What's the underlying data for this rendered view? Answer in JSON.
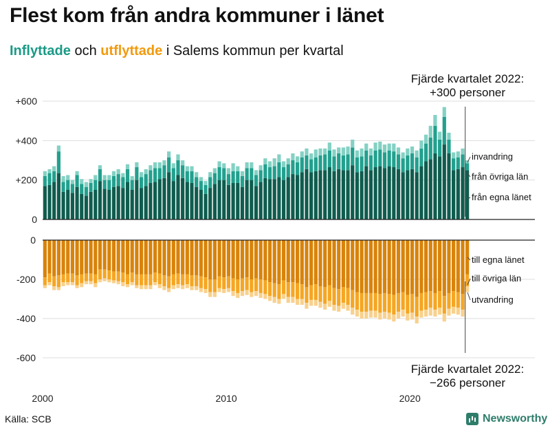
{
  "title": "Flest kom från andra kommuner i länet",
  "subtitle": {
    "part_in": "Inflyttade",
    "part_mid": " och ",
    "part_out": "utflyttade",
    "part_rest": " i Salems kommun per kvartal"
  },
  "source": "Källa: SCB",
  "brand": "Newsworthy",
  "colors": {
    "in_own": "#0f5c4e",
    "in_other": "#22a08e",
    "in_imm": "#84d1c4",
    "out_own": "#d8830a",
    "out_other": "#f5a623",
    "out_emi": "#f8d18e",
    "grid": "#dddddd",
    "axis": "#222222"
  },
  "chart_data": {
    "type": "bar",
    "stacked": true,
    "diverging": true,
    "x_start": "2000Q1",
    "x_ticks": [
      "2000",
      "2010",
      "2020"
    ],
    "y_ticks_top": [
      "+600",
      "+400",
      "+200",
      "0"
    ],
    "y_ticks_bottom": [
      "0",
      "-200",
      "-400",
      "-600"
    ],
    "ylim_top": [
      0,
      600
    ],
    "ylim_bottom": [
      -600,
      0
    ],
    "grid": true,
    "annotations": {
      "top_line1": "Fjärde kvartalet 2022:",
      "top_line2": "+300 personer",
      "bottom_line1": "Fjärde kvartalet 2022:",
      "bottom_line2": "−266 personer"
    },
    "labels_in": [
      "invandring",
      "från övriga län",
      "från egna länet"
    ],
    "labels_out": [
      "till egna länet",
      "till övriga län",
      "utvandring"
    ],
    "in_own": [
      170,
      175,
      190,
      235,
      140,
      150,
      135,
      165,
      130,
      120,
      140,
      150,
      195,
      155,
      150,
      165,
      170,
      160,
      190,
      150,
      200,
      160,
      170,
      185,
      190,
      205,
      210,
      240,
      195,
      225,
      210,
      190,
      185,
      165,
      150,
      130,
      160,
      180,
      200,
      200,
      175,
      185,
      185,
      165,
      200,
      200,
      170,
      190,
      210,
      205,
      205,
      215,
      200,
      215,
      230,
      225,
      240,
      255,
      240,
      245,
      250,
      250,
      265,
      245,
      255,
      250,
      250,
      275,
      240,
      245,
      270,
      250,
      265,
      270,
      260,
      270,
      265,
      255,
      240,
      250,
      255,
      240,
      270,
      295,
      305,
      335,
      320,
      380,
      335,
      250,
      255,
      265,
      250
    ],
    "in_other": [
      50,
      60,
      55,
      110,
      50,
      50,
      45,
      60,
      50,
      45,
      45,
      50,
      60,
      45,
      50,
      55,
      60,
      55,
      65,
      50,
      65,
      55,
      60,
      65,
      70,
      55,
      65,
      75,
      65,
      75,
      65,
      55,
      60,
      50,
      45,
      45,
      55,
      55,
      65,
      60,
      55,
      60,
      60,
      55,
      60,
      60,
      55,
      60,
      70,
      60,
      65,
      75,
      65,
      65,
      70,
      65,
      75,
      70,
      65,
      70,
      75,
      80,
      85,
      75,
      80,
      75,
      80,
      90,
      75,
      75,
      80,
      75,
      85,
      85,
      80,
      80,
      80,
      75,
      70,
      75,
      80,
      75,
      90,
      90,
      110,
      140,
      85,
      140,
      70,
      60,
      60,
      65,
      35
    ],
    "in_imm": [
      25,
      20,
      25,
      30,
      30,
      25,
      20,
      20,
      25,
      25,
      20,
      25,
      20,
      25,
      25,
      25,
      25,
      20,
      25,
      20,
      25,
      25,
      25,
      25,
      30,
      30,
      25,
      30,
      25,
      30,
      25,
      25,
      25,
      25,
      20,
      20,
      25,
      25,
      30,
      25,
      30,
      40,
      25,
      25,
      30,
      30,
      25,
      25,
      30,
      30,
      40,
      40,
      30,
      30,
      35,
      30,
      30,
      35,
      30,
      40,
      35,
      30,
      40,
      35,
      30,
      40,
      40,
      40,
      35,
      40,
      35,
      35,
      40,
      40,
      40,
      35,
      40,
      35,
      30,
      35,
      35,
      35,
      40,
      45,
      60,
      55,
      40,
      50,
      35,
      30,
      30,
      30,
      15
    ],
    "out_own": [
      190,
      170,
      185,
      180,
      175,
      170,
      170,
      180,
      175,
      170,
      170,
      175,
      150,
      150,
      155,
      160,
      160,
      165,
      175,
      165,
      175,
      175,
      175,
      175,
      165,
      170,
      180,
      185,
      175,
      170,
      175,
      175,
      180,
      180,
      185,
      190,
      200,
      200,
      185,
      190,
      185,
      195,
      200,
      195,
      190,
      200,
      195,
      200,
      205,
      215,
      220,
      225,
      205,
      215,
      215,
      220,
      225,
      240,
      230,
      225,
      235,
      240,
      230,
      245,
      250,
      240,
      245,
      255,
      265,
      270,
      270,
      270,
      270,
      275,
      270,
      275,
      280,
      270,
      265,
      280,
      275,
      290,
      270,
      265,
      260,
      270,
      260,
      285,
      270,
      260,
      265,
      275,
      175
    ],
    "out_other": [
      40,
      45,
      50,
      60,
      40,
      45,
      45,
      50,
      45,
      40,
      40,
      45,
      50,
      45,
      45,
      45,
      50,
      50,
      50,
      50,
      55,
      55,
      55,
      55,
      50,
      55,
      55,
      60,
      55,
      55,
      55,
      50,
      55,
      55,
      60,
      60,
      65,
      65,
      60,
      60,
      60,
      65,
      70,
      65,
      65,
      65,
      65,
      70,
      70,
      70,
      70,
      75,
      70,
      75,
      75,
      80,
      75,
      80,
      75,
      80,
      80,
      85,
      80,
      85,
      85,
      80,
      85,
      90,
      90,
      95,
      95,
      90,
      90,
      95,
      95,
      95,
      100,
      95,
      90,
      95,
      95,
      100,
      90,
      90,
      85,
      85,
      85,
      90,
      80,
      80,
      80,
      80,
      60
    ],
    "out_emi": [
      15,
      15,
      20,
      15,
      20,
      15,
      15,
      15,
      20,
      15,
      15,
      20,
      15,
      15,
      15,
      15,
      15,
      20,
      15,
      15,
      15,
      20,
      20,
      20,
      15,
      20,
      20,
      20,
      20,
      20,
      20,
      20,
      20,
      20,
      20,
      20,
      25,
      25,
      20,
      20,
      20,
      25,
      25,
      25,
      25,
      25,
      25,
      25,
      25,
      25,
      30,
      25,
      25,
      30,
      30,
      30,
      30,
      30,
      30,
      30,
      30,
      30,
      30,
      30,
      30,
      30,
      30,
      35,
      35,
      35,
      35,
      35,
      35,
      35,
      35,
      35,
      35,
      35,
      35,
      35,
      35,
      35,
      35,
      35,
      40,
      35,
      35,
      40,
      35,
      35,
      35,
      35,
      30
    ]
  }
}
